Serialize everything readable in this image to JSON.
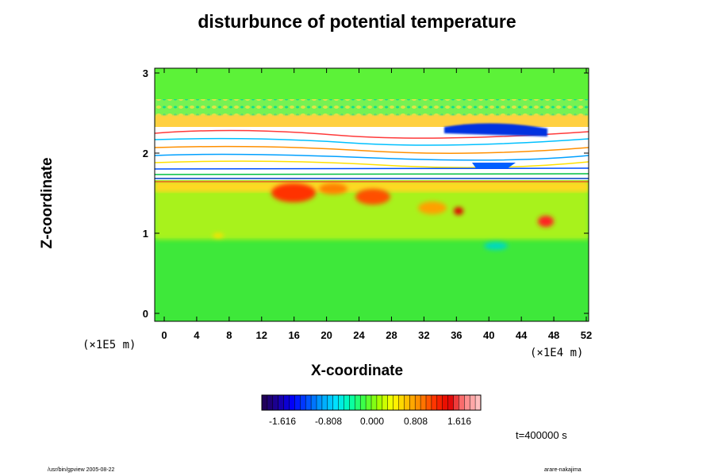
{
  "chart_data": {
    "type": "heatmap",
    "title": "disturbunce of potential temperature",
    "xlabel": "X-coordinate",
    "ylabel": "Z-coordinate",
    "x_unit": "(×1E4 m)",
    "y_unit": "(×1E5 m)",
    "xlim": [
      0,
      52
    ],
    "ylim": [
      0,
      3
    ],
    "x_ticks": [
      "0",
      "4",
      "8",
      "12",
      "16",
      "20",
      "24",
      "28",
      "32",
      "36",
      "40",
      "44",
      "48",
      "52"
    ],
    "y_ticks": [
      "0",
      "1",
      "2",
      "3"
    ],
    "colorbar": {
      "ticks": [
        "-1.616",
        "-0.808",
        "0.000",
        "0.808",
        "1.616"
      ],
      "colors": [
        "#20005a",
        "#1a00a0",
        "#0000ff",
        "#0050ff",
        "#00a0ff",
        "#00e0ff",
        "#00ffb0",
        "#40ff40",
        "#a0ff00",
        "#ffff00",
        "#ffc000",
        "#ff8000",
        "#ff3000",
        "#e00000",
        "#ff8080",
        "#ffc0c0"
      ]
    },
    "time_label": "t=400000 s"
  },
  "footer": {
    "left": "/usr/bin/gpview 2005-08-22",
    "right": "arare-nakajima"
  }
}
